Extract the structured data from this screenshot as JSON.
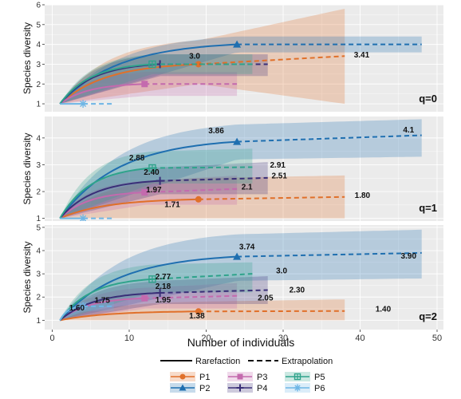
{
  "colors": {
    "P1": "#E0702A",
    "P2": "#1F6FB0",
    "P3": "#C46AAE",
    "P4": "#3A2F78",
    "P5": "#2FA38B",
    "P6": "#6EB6E6",
    "panel_bg": "#EBEBEB",
    "grid": "#FFFFFF"
  },
  "shared": {
    "ylabel": "Species diversity",
    "xlabel": "Number of individuals",
    "x_ticks": [
      "0",
      "10",
      "20",
      "30",
      "40",
      "50"
    ],
    "legend_rarefaction": "Rarefaction",
    "legend_extrapolation": "Extrapolation"
  },
  "legend_items": [
    {
      "id": "P1",
      "label": "P1",
      "color": "#E0702A",
      "marker": "circle"
    },
    {
      "id": "P3",
      "label": "P3",
      "color": "#C46AAE",
      "marker": "square"
    },
    {
      "id": "P5",
      "label": "P5",
      "color": "#2FA38B",
      "marker": "square-cross"
    },
    {
      "id": "P2",
      "label": "P2",
      "color": "#1F6FB0",
      "marker": "triangle"
    },
    {
      "id": "P4",
      "label": "P4",
      "color": "#3A2F78",
      "marker": "plus"
    },
    {
      "id": "P6",
      "label": "P6",
      "color": "#6EB6E6",
      "marker": "asterisk"
    }
  ],
  "chart_data": [
    {
      "type": "line",
      "tag": "q=0",
      "ylabel": "Species diversity",
      "xlabel": "Number of individuals",
      "xlim": [
        0,
        50
      ],
      "ylim": [
        0.6,
        6
      ],
      "y_ticks": [
        1,
        2,
        3,
        4,
        5,
        6
      ],
      "grid": true,
      "series": [
        {
          "name": "P1",
          "n": 19,
          "obs": 3.0,
          "end": 3.41,
          "xmax": 38,
          "ci_obs": [
            2.0,
            4.2
          ],
          "ci_end": [
            1.0,
            5.8
          ],
          "y_end": 2.0
        },
        {
          "name": "P2",
          "n": 24,
          "obs": 4.0,
          "end": 4.0,
          "xmax": 48,
          "ci_obs": [
            3.6,
            4.4
          ],
          "ci_end": [
            3.6,
            4.4
          ],
          "y_end": 3.0
        },
        {
          "name": "P3",
          "n": 12,
          "obs": 2.0,
          "end": 2.0,
          "xmax": 24,
          "ci_obs": [
            1.4,
            2.6
          ],
          "ci_end": [
            1.4,
            2.6
          ],
          "y_end": 1.0
        },
        {
          "name": "P4",
          "n": 14,
          "obs": 3.0,
          "end": 3.0,
          "xmax": 28,
          "ci_obs": [
            2.4,
            3.5
          ],
          "ci_end": [
            2.4,
            3.5
          ],
          "y_end": 1.5
        },
        {
          "name": "P5",
          "n": 13,
          "obs": 3.0,
          "end": 3.0,
          "xmax": 26,
          "ci_obs": [
            2.5,
            3.5
          ],
          "ci_end": [
            2.5,
            3.5
          ],
          "y_end": 1.5
        },
        {
          "name": "P6",
          "n": 4,
          "obs": 1.0,
          "end": 1.0,
          "xmax": 8,
          "ci_obs": [
            1.0,
            1.0
          ],
          "ci_end": [
            1.0,
            1.0
          ],
          "y_end": 1.0
        }
      ],
      "annotations": [
        {
          "text": "3.0",
          "x": 18.5,
          "y": 3.28
        },
        {
          "text": "3.41",
          "x": 40.2,
          "y": 3.35
        }
      ]
    },
    {
      "type": "line",
      "tag": "q=1",
      "ylabel": "Species diversity",
      "xlim": [
        0,
        50
      ],
      "ylim": [
        0.9,
        4.8
      ],
      "y_ticks": [
        1,
        2,
        3,
        4
      ],
      "grid": true,
      "series": [
        {
          "name": "P1",
          "n": 19,
          "obs": 1.71,
          "end": 1.8,
          "xmax": 38,
          "ci_obs": [
            1.0,
            2.5
          ],
          "ci_end": [
            1.0,
            2.6
          ],
          "y_end": 1.0
        },
        {
          "name": "P2",
          "n": 24,
          "obs": 3.86,
          "end": 4.1,
          "xmax": 48,
          "ci_obs": [
            3.2,
            4.5
          ],
          "ci_end": [
            3.3,
            4.7
          ],
          "y_end": 1.0
        },
        {
          "name": "P3",
          "n": 12,
          "obs": 1.97,
          "end": 2.1,
          "xmax": 24,
          "ci_obs": [
            1.5,
            2.4
          ],
          "ci_end": [
            1.5,
            2.6
          ],
          "y_end": 1.0
        },
        {
          "name": "P4",
          "n": 14,
          "obs": 2.4,
          "end": 2.51,
          "xmax": 28,
          "ci_obs": [
            1.9,
            2.9
          ],
          "ci_end": [
            1.9,
            3.1
          ],
          "y_end": 1.0
        },
        {
          "name": "P5",
          "n": 13,
          "obs": 2.88,
          "end": 2.91,
          "xmax": 26,
          "ci_obs": [
            2.3,
            3.5
          ],
          "ci_end": [
            2.3,
            3.6
          ],
          "y_end": 1.0
        },
        {
          "name": "P6",
          "n": 4,
          "obs": 1.0,
          "end": 1.0,
          "xmax": 8,
          "ci_obs": [
            1.0,
            1.0
          ],
          "ci_end": [
            1.0,
            1.0
          ],
          "y_end": 1.0
        }
      ],
      "annotations": [
        {
          "text": "3.86",
          "x": 21.3,
          "y": 4.18
        },
        {
          "text": "4.1",
          "x": 46.3,
          "y": 4.2
        },
        {
          "text": "2.88",
          "x": 11.0,
          "y": 3.17
        },
        {
          "text": "2.91",
          "x": 29.3,
          "y": 2.9
        },
        {
          "text": "2.40",
          "x": 12.9,
          "y": 2.62
        },
        {
          "text": "2.51",
          "x": 29.5,
          "y": 2.5
        },
        {
          "text": "1.97",
          "x": 13.2,
          "y": 1.97
        },
        {
          "text": "2.1",
          "x": 25.3,
          "y": 2.08
        },
        {
          "text": "1.71",
          "x": 15.6,
          "y": 1.42
        },
        {
          "text": "1.80",
          "x": 40.3,
          "y": 1.76
        }
      ]
    },
    {
      "type": "line",
      "tag": "q=2",
      "ylabel": "Species diversity",
      "xlabel": "Number of individuals",
      "xlim": [
        0,
        50
      ],
      "ylim": [
        0.6,
        5.1
      ],
      "y_ticks": [
        1,
        2,
        3,
        4,
        5
      ],
      "grid": true,
      "series": [
        {
          "name": "P1",
          "n": 19,
          "obs": 1.38,
          "end": 1.4,
          "xmax": 38,
          "ci_obs": [
            1.0,
            1.8
          ],
          "ci_end": [
            1.0,
            1.9
          ],
          "y_end": 1.0
        },
        {
          "name": "P2",
          "n": 24,
          "obs": 3.74,
          "end": 3.9,
          "xmax": 48,
          "ci_obs": [
            2.7,
            4.7
          ],
          "ci_end": [
            2.8,
            4.9
          ],
          "y_end": 1.0
        },
        {
          "name": "P3",
          "n": 12,
          "obs": 1.95,
          "end": 2.05,
          "xmax": 24,
          "ci_obs": [
            1.5,
            2.4
          ],
          "ci_end": [
            1.5,
            2.6
          ],
          "y_end": 1.0
        },
        {
          "name": "P4",
          "n": 14,
          "obs": 2.18,
          "end": 2.3,
          "xmax": 28,
          "ci_obs": [
            1.7,
            2.7
          ],
          "ci_end": [
            1.7,
            2.9
          ],
          "y_end": 1.0
        },
        {
          "name": "P5",
          "n": 13,
          "obs": 2.77,
          "end": 3.0,
          "xmax": 26,
          "ci_obs": [
            2.2,
            3.4
          ],
          "ci_end": [
            2.2,
            3.5
          ],
          "y_end": 1.0
        },
        {
          "name": "P6",
          "n": 4,
          "obs": 1.6,
          "end": 1.6,
          "xmax": 8,
          "ci_obs": [
            1.4,
            1.8
          ],
          "ci_end": [
            1.4,
            1.8
          ],
          "y_end": 1.0
        }
      ],
      "annotations": [
        {
          "text": "3.74",
          "x": 25.3,
          "y": 4.05
        },
        {
          "text": "3.90",
          "x": 46.3,
          "y": 3.65
        },
        {
          "text": "2.77",
          "x": 14.4,
          "y": 2.77
        },
        {
          "text": "3.0",
          "x": 29.8,
          "y": 3.02
        },
        {
          "text": "2.18",
          "x": 14.4,
          "y": 2.36
        },
        {
          "text": "2.30",
          "x": 31.8,
          "y": 2.2
        },
        {
          "text": "1.75",
          "x": 6.5,
          "y": 1.75
        },
        {
          "text": "1.95",
          "x": 14.4,
          "y": 1.76
        },
        {
          "text": "2.05",
          "x": 27.7,
          "y": 1.85
        },
        {
          "text": "1.60",
          "x": 3.2,
          "y": 1.42
        },
        {
          "text": "1.38",
          "x": 18.8,
          "y": 1.08
        },
        {
          "text": "1.40",
          "x": 43.0,
          "y": 1.38
        }
      ]
    }
  ]
}
